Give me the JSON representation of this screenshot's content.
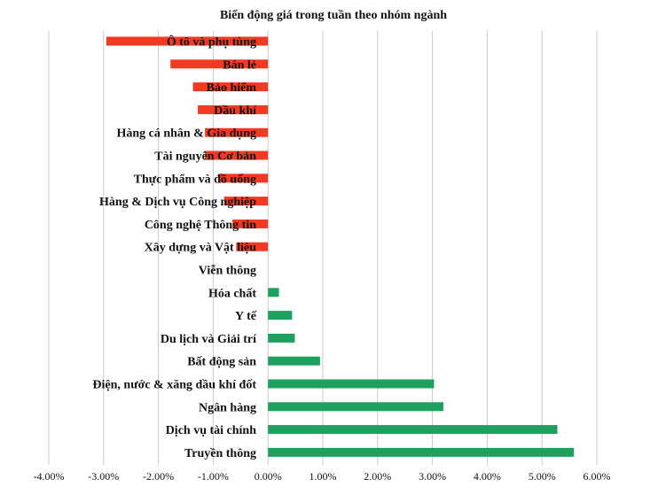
{
  "chart_data": {
    "type": "bar",
    "orientation": "horizontal",
    "title": "Biến động giá trong tuần theo nhóm ngành",
    "xlabel": "",
    "ylabel": "",
    "xlim": [
      -0.04,
      0.06
    ],
    "x_ticks": [
      -0.04,
      -0.03,
      -0.02,
      -0.01,
      0.0,
      0.01,
      0.02,
      0.03,
      0.04,
      0.05,
      0.06
    ],
    "x_tick_labels": [
      "-4.00%",
      "-3.00%",
      "-2.00%",
      "-1.00%",
      "0.00%",
      "1.00%",
      "2.00%",
      "3.00%",
      "4.00%",
      "5.00%",
      "6.00%"
    ],
    "grid": true,
    "legend": "none",
    "colors": {
      "negative": "#f23a22",
      "positive": "#1ea05e"
    },
    "categories": [
      "Ô tô và phụ tùng",
      "Bán lẻ",
      "Bảo hiểm",
      "Dầu khí",
      "Hàng cá nhân & Gia dụng",
      "Tài nguyên Cơ bản",
      "Thực phẩm và đồ uống",
      "Hàng & Dịch vụ Công nghiệp",
      "Công nghệ Thông tin",
      "Xây dựng và Vật liệu",
      "Viễn thông",
      "Hóa chất",
      "Y tế",
      "Du lịch và Giải trí",
      "Bất động sản",
      "Điện, nước & xăng dầu khí đốt",
      "Ngân hàng",
      "Dịch vụ tài chính",
      "Truyền thông"
    ],
    "values": [
      -0.0295,
      -0.0178,
      -0.0137,
      -0.0128,
      -0.0115,
      -0.0115,
      -0.009,
      -0.008,
      -0.0065,
      -0.0058,
      0.0,
      0.002,
      0.0044,
      0.0049,
      0.0095,
      0.0303,
      0.032,
      0.0528,
      0.0558
    ]
  }
}
